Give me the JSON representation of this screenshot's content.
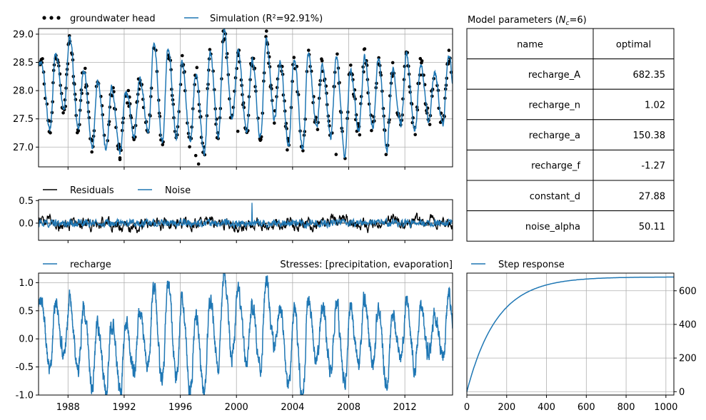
{
  "chart_data": [
    {
      "id": "head",
      "type": "line",
      "legend": [
        "groundwater head",
        "Simulation (R²=92.91%)"
      ],
      "legend_placement": "above-left",
      "xlim": [
        1985.9,
        2015.4
      ],
      "ylim": [
        26.65,
        29.1
      ],
      "yticks": [
        27.0,
        27.5,
        28.0,
        28.5,
        29.0
      ],
      "xticks": [
        1988,
        1992,
        1996,
        2000,
        2004,
        2008,
        2012
      ],
      "grid": true,
      "annual_peaks": [
        {
          "year": 1986,
          "value": 28.45
        },
        {
          "year": 1987,
          "value": 28.7
        },
        {
          "year": 1988,
          "value": 28.95
        },
        {
          "year": 1989,
          "value": 28.4
        },
        {
          "year": 1990,
          "value": 28.15
        },
        {
          "year": 1991,
          "value": 28.05
        },
        {
          "year": 1992,
          "value": 28.0
        },
        {
          "year": 1993,
          "value": 28.25
        },
        {
          "year": 1994,
          "value": 28.85
        },
        {
          "year": 1995,
          "value": 28.75
        },
        {
          "year": 1996,
          "value": 28.5
        },
        {
          "year": 1997,
          "value": 28.3
        },
        {
          "year": 1998,
          "value": 28.65
        },
        {
          "year": 1999,
          "value": 29.05
        },
        {
          "year": 2000,
          "value": 28.75
        },
        {
          "year": 2001,
          "value": 28.55
        },
        {
          "year": 2002,
          "value": 28.9
        },
        {
          "year": 2003,
          "value": 28.5
        },
        {
          "year": 2004,
          "value": 28.55
        },
        {
          "year": 2005,
          "value": 28.65
        },
        {
          "year": 2006,
          "value": 28.45
        },
        {
          "year": 2007,
          "value": 28.6
        },
        {
          "year": 2008,
          "value": 28.35
        },
        {
          "year": 2009,
          "value": 28.6
        },
        {
          "year": 2010,
          "value": 28.55
        },
        {
          "year": 2011,
          "value": 28.4
        },
        {
          "year": 2012,
          "value": 28.6
        },
        {
          "year": 2013,
          "value": 28.45
        },
        {
          "year": 2014,
          "value": 28.3
        },
        {
          "year": 2015,
          "value": 28.6
        }
      ],
      "annual_troughs": [
        {
          "year": 1986,
          "value": 27.3
        },
        {
          "year": 1987,
          "value": 27.65
        },
        {
          "year": 1988,
          "value": 27.35
        },
        {
          "year": 1989,
          "value": 27.0
        },
        {
          "year": 1990,
          "value": 26.95
        },
        {
          "year": 1991,
          "value": 26.9
        },
        {
          "year": 1992,
          "value": 27.2
        },
        {
          "year": 1993,
          "value": 27.3
        },
        {
          "year": 1994,
          "value": 27.05
        },
        {
          "year": 1995,
          "value": 27.2
        },
        {
          "year": 1996,
          "value": 27.1
        },
        {
          "year": 1997,
          "value": 26.85
        },
        {
          "year": 1998,
          "value": 27.2
        },
        {
          "year": 1999,
          "value": 27.45
        },
        {
          "year": 2000,
          "value": 27.3
        },
        {
          "year": 2001,
          "value": 27.2
        },
        {
          "year": 2002,
          "value": 27.5
        },
        {
          "year": 2003,
          "value": 27.05
        },
        {
          "year": 2004,
          "value": 26.95
        },
        {
          "year": 2005,
          "value": 27.35
        },
        {
          "year": 2006,
          "value": 27.2
        },
        {
          "year": 2007,
          "value": 26.85
        },
        {
          "year": 2008,
          "value": 27.3
        },
        {
          "year": 2009,
          "value": 27.35
        },
        {
          "year": 2010,
          "value": 27.0
        },
        {
          "year": 2011,
          "value": 27.4
        },
        {
          "year": 2012,
          "value": 27.3
        },
        {
          "year": 2013,
          "value": 27.45
        },
        {
          "year": 2014,
          "value": 27.4
        },
        {
          "year": 2015,
          "value": 27.6
        }
      ],
      "outlier_points": [
        {
          "x": 1991.7,
          "y": 26.78
        },
        {
          "x": 1997.3,
          "y": 26.7
        },
        {
          "x": 1997.1,
          "y": 26.85
        },
        {
          "x": 2001.7,
          "y": 27.12
        },
        {
          "x": 2007.1,
          "y": 26.87
        },
        {
          "x": 2000.1,
          "y": 27.28
        },
        {
          "x": 1988.1,
          "y": 28.97
        },
        {
          "x": 1999.1,
          "y": 28.9
        },
        {
          "x": 2012.1,
          "y": 28.65
        }
      ]
    },
    {
      "id": "residuals",
      "type": "line",
      "legend": [
        "Residuals",
        "Noise"
      ],
      "legend_placement": "above-left",
      "xlim": [
        1985.9,
        2015.4
      ],
      "ylim": [
        -0.38,
        0.52
      ],
      "yticks": [
        -0.0,
        0.5
      ],
      "grid": false
    },
    {
      "id": "recharge",
      "type": "line",
      "title": "Stresses: [precipitation, evaporation]",
      "legend": [
        "recharge"
      ],
      "legend_placement": "above-left",
      "xlim": [
        1985.9,
        2015.4
      ],
      "ylim": [
        -1.0,
        1.17
      ],
      "yticks": [
        -1.0,
        -0.5,
        0.0,
        0.5,
        1.0
      ],
      "xticks": [
        1988,
        1992,
        1996,
        2000,
        2004,
        2008,
        2012
      ],
      "grid": true,
      "annual_peaks": [
        {
          "year": 1986,
          "value": 0.6
        },
        {
          "year": 1987,
          "value": 0.7
        },
        {
          "year": 1988,
          "value": 0.65
        },
        {
          "year": 1989,
          "value": 0.55
        },
        {
          "year": 1990,
          "value": 0.2
        },
        {
          "year": 1991,
          "value": 0.3
        },
        {
          "year": 1992,
          "value": 0.2
        },
        {
          "year": 1993,
          "value": 0.5
        },
        {
          "year": 1994,
          "value": 0.95
        },
        {
          "year": 1995,
          "value": 1.0
        },
        {
          "year": 1996,
          "value": 0.75
        },
        {
          "year": 1997,
          "value": 0.4
        },
        {
          "year": 1998,
          "value": 0.75
        },
        {
          "year": 1999,
          "value": 1.15
        },
        {
          "year": 2000,
          "value": 0.8
        },
        {
          "year": 2001,
          "value": 0.6
        },
        {
          "year": 2002,
          "value": 1.0
        },
        {
          "year": 2003,
          "value": 0.6
        },
        {
          "year": 2004,
          "value": 0.55
        },
        {
          "year": 2005,
          "value": 0.7
        },
        {
          "year": 2006,
          "value": 0.6
        },
        {
          "year": 2007,
          "value": 0.65
        },
        {
          "year": 2008,
          "value": 0.5
        },
        {
          "year": 2009,
          "value": 0.7
        },
        {
          "year": 2010,
          "value": 0.55
        },
        {
          "year": 2011,
          "value": 0.45
        },
        {
          "year": 2012,
          "value": 0.7
        },
        {
          "year": 2013,
          "value": 0.55
        },
        {
          "year": 2014,
          "value": 0.45
        },
        {
          "year": 2015,
          "value": 0.75
        }
      ],
      "annual_troughs": [
        {
          "year": 1986,
          "value": -0.6
        },
        {
          "year": 1987,
          "value": -0.3
        },
        {
          "year": 1988,
          "value": -0.5
        },
        {
          "year": 1989,
          "value": -0.85
        },
        {
          "year": 1990,
          "value": -0.95
        },
        {
          "year": 1991,
          "value": -0.95
        },
        {
          "year": 1992,
          "value": -0.6
        },
        {
          "year": 1993,
          "value": -0.5
        },
        {
          "year": 1994,
          "value": -0.8
        },
        {
          "year": 1995,
          "value": -0.7
        },
        {
          "year": 1996,
          "value": -0.95
        },
        {
          "year": 1997,
          "value": -1.0
        },
        {
          "year": 1998,
          "value": -0.5
        },
        {
          "year": 1999,
          "value": -0.3
        },
        {
          "year": 2000,
          "value": -0.45
        },
        {
          "year": 2001,
          "value": -0.5
        },
        {
          "year": 2002,
          "value": -0.2
        },
        {
          "year": 2003,
          "value": -0.95
        },
        {
          "year": 2004,
          "value": -1.0
        },
        {
          "year": 2005,
          "value": -0.4
        },
        {
          "year": 2006,
          "value": -0.6
        },
        {
          "year": 2007,
          "value": -0.8
        },
        {
          "year": 2008,
          "value": -0.45
        },
        {
          "year": 2009,
          "value": -0.5
        },
        {
          "year": 2010,
          "value": -0.85
        },
        {
          "year": 2011,
          "value": -0.35
        },
        {
          "year": 2012,
          "value": -0.5
        },
        {
          "year": 2013,
          "value": -0.3
        },
        {
          "year": 2014,
          "value": -0.35
        },
        {
          "year": 2015,
          "value": -0.3
        }
      ]
    },
    {
      "id": "step",
      "type": "line",
      "legend": [
        "Step response"
      ],
      "legend_placement": "above-left",
      "xlim": [
        0,
        1040
      ],
      "ylim": [
        -20,
        705
      ],
      "xticks": [
        0,
        200,
        400,
        600,
        800,
        1000
      ],
      "yticks": [
        0,
        200,
        400,
        600
      ],
      "yaxis_side": "right",
      "grid": true,
      "series": [
        {
          "name": "Step response",
          "A": 682.35,
          "a": 150.38,
          "n": 1.02
        }
      ]
    }
  ],
  "parameters_table": {
    "title": "Model parameters (N_c=6)",
    "columns": [
      "name",
      "optimal"
    ],
    "rows": [
      [
        "recharge_A",
        "682.35"
      ],
      [
        "recharge_n",
        "1.02"
      ],
      [
        "recharge_a",
        "150.38"
      ],
      [
        "recharge_f",
        "-1.27"
      ],
      [
        "constant_d",
        "27.88"
      ],
      [
        "noise_alpha",
        "50.11"
      ]
    ]
  },
  "colors": {
    "simulation": "#1f77b4",
    "observations": "#000000",
    "residuals": "#000000",
    "noise": "#1f77b4",
    "recharge": "#1f77b4",
    "step": "#1f77b4",
    "grid": "#b0b0b0"
  }
}
